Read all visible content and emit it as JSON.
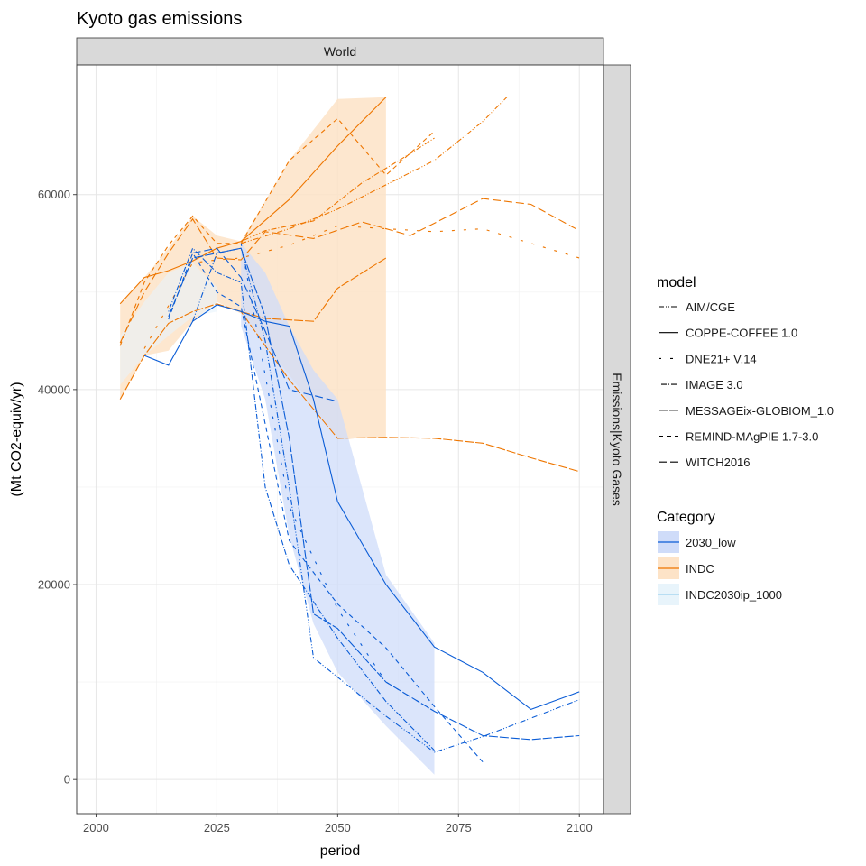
{
  "chart_data": {
    "type": "line",
    "title": "Kyoto gas emissions",
    "facet_top": "World",
    "facet_right": "Emissions|Kyoto Gases",
    "xlabel": "period",
    "ylabel": "(Mt CO2-equiv/yr)",
    "xlim": [
      1996,
      2105
    ],
    "ylim": [
      -3500,
      73300
    ],
    "x_ticks": [
      2000,
      2025,
      2050,
      2075,
      2100
    ],
    "y_ticks": [
      0,
      20000,
      40000,
      60000
    ],
    "grid": true,
    "legend_placement": "right",
    "model_legend": {
      "title": "model",
      "items": [
        {
          "label": "AIM/CGE",
          "dash": "6 2 1 2 1 2"
        },
        {
          "label": "COPPE-COFFEE 1.0",
          "dash": ""
        },
        {
          "label": "DNE21+ V.14",
          "dash": "3 10"
        },
        {
          "label": "IMAGE 3.0",
          "dash": "1 2 6 2"
        },
        {
          "label": "MESSAGEix-GLOBIOM_1.0",
          "dash": "10 2"
        },
        {
          "label": "REMIND-MAgPIE 1.7-3.0",
          "dash": "5 4"
        },
        {
          "label": "WITCH2016",
          "dash": "9 4"
        }
      ]
    },
    "category_legend": {
      "title": "Category",
      "items": [
        {
          "label": "2030_low",
          "color": "#0a5cd6",
          "fill": "#cfdcf9"
        },
        {
          "label": "INDC",
          "color": "#ee7600",
          "fill": "#fde3c7"
        },
        {
          "label": "INDC2030ip_1000",
          "color": "#9ad1ee",
          "fill": "#e8f4fb"
        }
      ]
    },
    "ribbons": [
      {
        "category": "INDC",
        "color": "#fde3c7",
        "opacity": 0.85,
        "upper": [
          [
            2005,
            48800
          ],
          [
            2010,
            51500
          ],
          [
            2015,
            54500
          ],
          [
            2020,
            57800
          ],
          [
            2025,
            55800
          ],
          [
            2030,
            55200
          ],
          [
            2040,
            63500
          ],
          [
            2050,
            69800
          ],
          [
            2060,
            70000
          ]
        ],
        "lower": [
          [
            2005,
            39000
          ],
          [
            2010,
            43500
          ],
          [
            2015,
            44000
          ],
          [
            2020,
            47000
          ],
          [
            2025,
            49000
          ],
          [
            2030,
            47800
          ],
          [
            2040,
            41500
          ],
          [
            2050,
            35000
          ],
          [
            2060,
            35000
          ]
        ]
      },
      {
        "category": "2030_low",
        "color": "#cfdcf9",
        "opacity": 0.75,
        "upper": [
          [
            2030,
            55000
          ],
          [
            2035,
            52000
          ],
          [
            2040,
            46500
          ],
          [
            2045,
            42000
          ],
          [
            2050,
            39000
          ],
          [
            2060,
            21000
          ],
          [
            2070,
            14000
          ]
        ],
        "lower": [
          [
            2030,
            46500
          ],
          [
            2035,
            39000
          ],
          [
            2040,
            25000
          ],
          [
            2045,
            16000
          ],
          [
            2050,
            11000
          ],
          [
            2060,
            5500
          ],
          [
            2070,
            500
          ]
        ]
      },
      {
        "category": "INDC2030ip_1000",
        "color": "#e8f4fb",
        "opacity": 0.6,
        "upper": [
          [
            2005,
            45500
          ],
          [
            2010,
            49000
          ],
          [
            2015,
            52000
          ],
          [
            2020,
            53000
          ],
          [
            2025,
            50500
          ]
        ],
        "lower": [
          [
            2005,
            40500
          ],
          [
            2010,
            43500
          ],
          [
            2015,
            45500
          ],
          [
            2020,
            47500
          ],
          [
            2025,
            48000
          ]
        ]
      }
    ],
    "series": [
      {
        "model": "COPPE-COFFEE 1.0",
        "category": "INDC",
        "x": [
          2005,
          2010,
          2015,
          2020,
          2025,
          2030,
          2040,
          2050,
          2060
        ],
        "y": [
          48800,
          51500,
          52200,
          53200,
          54500,
          55200,
          59500,
          65000,
          70000
        ]
      },
      {
        "model": "AIM/CGE",
        "category": "INDC",
        "x": [
          2030,
          2040,
          2050,
          2060,
          2070,
          2080,
          2085
        ],
        "y": [
          55000,
          56500,
          58500,
          61000,
          63500,
          67500,
          70000
        ]
      },
      {
        "model": "REMIND-MAgPIE 1.7-3.0",
        "category": "INDC",
        "x": [
          2005,
          2010,
          2015,
          2020,
          2025,
          2030,
          2040,
          2050,
          2060,
          2070
        ],
        "y": [
          44500,
          51000,
          54800,
          57800,
          55000,
          55000,
          63500,
          67800,
          62000,
          66500
        ]
      },
      {
        "model": "IMAGE 3.0",
        "category": "INDC",
        "x": [
          2030,
          2035,
          2045,
          2055,
          2065,
          2070
        ],
        "y": [
          55200,
          56300,
          57300,
          61200,
          64200,
          65800
        ]
      },
      {
        "model": "WITCH2016",
        "category": "INDC",
        "x": [
          2005,
          2010,
          2015,
          2020,
          2025,
          2030,
          2035,
          2045,
          2055,
          2065,
          2080,
          2090,
          2100
        ],
        "y": [
          44800,
          50000,
          54000,
          57500,
          53500,
          53300,
          56200,
          55500,
          57200,
          55800,
          59600,
          59000,
          56300
        ]
      },
      {
        "model": "DNE21+ V.14",
        "category": "INDC",
        "x": [
          2010,
          2020,
          2025,
          2030,
          2040,
          2050,
          2070,
          2080,
          2100
        ],
        "y": [
          44200,
          53000,
          53300,
          53500,
          54800,
          56800,
          56200,
          56500,
          53500
        ]
      },
      {
        "model": "MESSAGEix-GLOBIOM_1.0",
        "category": "INDC",
        "x": [
          2005,
          2010,
          2015,
          2020,
          2025,
          2030,
          2040,
          2050,
          2060,
          2070,
          2080,
          2090,
          2100
        ],
        "y": [
          39000,
          43500,
          46800,
          48000,
          48800,
          48000,
          41000,
          35000,
          35100,
          35000,
          34500,
          33000,
          31600
        ]
      },
      {
        "model": "MESSAGEix-GLOBIOM_1.0",
        "category": "INDC",
        "x": [
          2030,
          2035,
          2045,
          2050,
          2060
        ],
        "y": [
          48000,
          47300,
          47000,
          50400,
          53500
        ]
      },
      {
        "model": "COPPE-COFFEE 1.0",
        "category": "2030_low",
        "x": [
          2010,
          2015,
          2020,
          2025,
          2030,
          2035,
          2040,
          2045,
          2050,
          2060,
          2070,
          2080,
          2090,
          2100
        ],
        "y": [
          43500,
          42500,
          47000,
          48700,
          48000,
          47000,
          46500,
          39000,
          28500,
          20000,
          13600,
          11000,
          7200,
          9000
        ]
      },
      {
        "model": "REMIND-MAgPIE 1.7-3.0",
        "category": "2030_low",
        "x": [
          2015,
          2020,
          2025,
          2030,
          2040,
          2050,
          2060,
          2070,
          2080
        ],
        "y": [
          47200,
          54000,
          50000,
          48500,
          24500,
          18000,
          13500,
          7500,
          1800
        ]
      },
      {
        "model": "IMAGE 3.0",
        "category": "2030_low",
        "x": [
          2015,
          2020,
          2025,
          2030,
          2035,
          2040,
          2050,
          2060,
          2070
        ],
        "y": [
          48000,
          54500,
          52000,
          51000,
          30000,
          22000,
          14500,
          8000,
          3000
        ]
      },
      {
        "model": "AIM/CGE",
        "category": "2030_low",
        "x": [
          2020,
          2025,
          2030,
          2035,
          2040,
          2045,
          2060,
          2070,
          2080,
          2090,
          2100
        ],
        "y": [
          47000,
          54000,
          54500,
          45000,
          30000,
          12500,
          6500,
          2800,
          4400,
          6300,
          8200
        ]
      },
      {
        "model": "MESSAGEix-GLOBIOM_1.0",
        "category": "2030_low",
        "x": [
          2015,
          2020,
          2025,
          2030,
          2035,
          2040,
          2045,
          2050,
          2060,
          2070,
          2080,
          2090,
          2100
        ],
        "y": [
          47500,
          53500,
          54000,
          54500,
          47500,
          35000,
          17000,
          15500,
          10000,
          7000,
          4500,
          4100,
          4500
        ]
      },
      {
        "model": "WITCH2016",
        "category": "2030_low",
        "x": [
          2020,
          2025,
          2030,
          2035,
          2040,
          2050
        ],
        "y": [
          54000,
          54500,
          51500,
          46000,
          40000,
          38800
        ]
      },
      {
        "model": "DNE21+ V.14",
        "category": "2030_low",
        "x": [
          2030,
          2040,
          2050,
          2060,
          2070
        ],
        "y": [
          55000,
          28000,
          17500,
          10000,
          7000
        ]
      }
    ]
  }
}
